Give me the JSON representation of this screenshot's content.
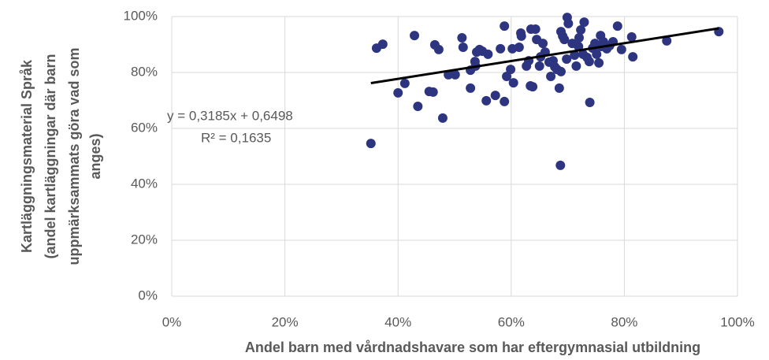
{
  "chart_data": {
    "type": "scatter",
    "xlabel": "Andel barn med vårdnadshavare som har eftergymnasial utbildning",
    "ylabel": [
      "Kartläggningsmaterial Språk",
      "(andel kartläggningar där barn",
      "uppmärksammats göra vad som",
      "anges)"
    ],
    "color": "#2e3580",
    "x": [
      0.352,
      0.362,
      0.373,
      0.4,
      0.412,
      0.429,
      0.435,
      0.455,
      0.462,
      0.465,
      0.472,
      0.479,
      0.489,
      0.501,
      0.513,
      0.515,
      0.528,
      0.528,
      0.536,
      0.537,
      0.539,
      0.544,
      0.549,
      0.556,
      0.559,
      0.572,
      0.581,
      0.588,
      0.588,
      0.592,
      0.599,
      0.602,
      0.604,
      0.614,
      0.617,
      0.618,
      0.627,
      0.631,
      0.634,
      0.635,
      0.638,
      0.643,
      0.645,
      0.65,
      0.652,
      0.656,
      0.66,
      0.667,
      0.67,
      0.674,
      0.677,
      0.681,
      0.685,
      0.688,
      0.687,
      0.688,
      0.691,
      0.694,
      0.698,
      0.699,
      0.701,
      0.708,
      0.712,
      0.715,
      0.719,
      0.72,
      0.723,
      0.727,
      0.729,
      0.734,
      0.738,
      0.739,
      0.744,
      0.748,
      0.751,
      0.755,
      0.758,
      0.759,
      0.763,
      0.769,
      0.774,
      0.78,
      0.788,
      0.795,
      0.813,
      0.815,
      0.875,
      0.967
    ],
    "y": [
      0.546,
      0.887,
      0.901,
      0.727,
      0.761,
      0.932,
      0.679,
      0.732,
      0.73,
      0.899,
      0.882,
      0.637,
      0.792,
      0.792,
      0.924,
      0.89,
      0.744,
      0.808,
      0.839,
      0.823,
      0.873,
      0.882,
      0.876,
      0.699,
      0.865,
      0.718,
      0.885,
      0.966,
      0.696,
      0.786,
      0.811,
      0.885,
      0.763,
      0.89,
      0.941,
      0.93,
      0.823,
      0.842,
      0.752,
      0.955,
      0.749,
      0.955,
      0.918,
      0.823,
      0.856,
      0.904,
      0.873,
      0.837,
      0.786,
      0.842,
      0.82,
      0.811,
      0.744,
      0.803,
      0.468,
      0.946,
      0.93,
      0.918,
      0.848,
      0.997,
      0.975,
      0.904,
      0.862,
      0.823,
      0.893,
      0.924,
      0.952,
      0.865,
      0.98,
      0.854,
      0.839,
      0.693,
      0.887,
      0.904,
      0.865,
      0.834,
      0.932,
      0.893,
      0.91,
      0.885,
      0.896,
      0.91,
      0.966,
      0.882,
      0.927,
      0.856,
      0.913,
      0.946
    ],
    "trendline": {
      "slope": 0.3185,
      "intercept": 0.6498,
      "equation": "y = 0,3185x + 0,6498",
      "r2": "R² = 0,1635"
    },
    "xlim": [
      0,
      1
    ],
    "ylim": [
      0,
      1
    ],
    "xticks": [
      {
        "value": 0,
        "label": "0%"
      },
      {
        "value": 0.2,
        "label": "20%"
      },
      {
        "value": 0.4,
        "label": "40%"
      },
      {
        "value": 0.6,
        "label": "60%"
      },
      {
        "value": 0.8,
        "label": "80%"
      },
      {
        "value": 1,
        "label": "100%"
      }
    ],
    "yticks": [
      {
        "value": 0,
        "label": "0%"
      },
      {
        "value": 0.2,
        "label": "20%"
      },
      {
        "value": 0.4,
        "label": "40%"
      },
      {
        "value": 0.6,
        "label": "60%"
      },
      {
        "value": 0.8,
        "label": "80%"
      },
      {
        "value": 1,
        "label": "100%"
      }
    ],
    "grid": true
  }
}
